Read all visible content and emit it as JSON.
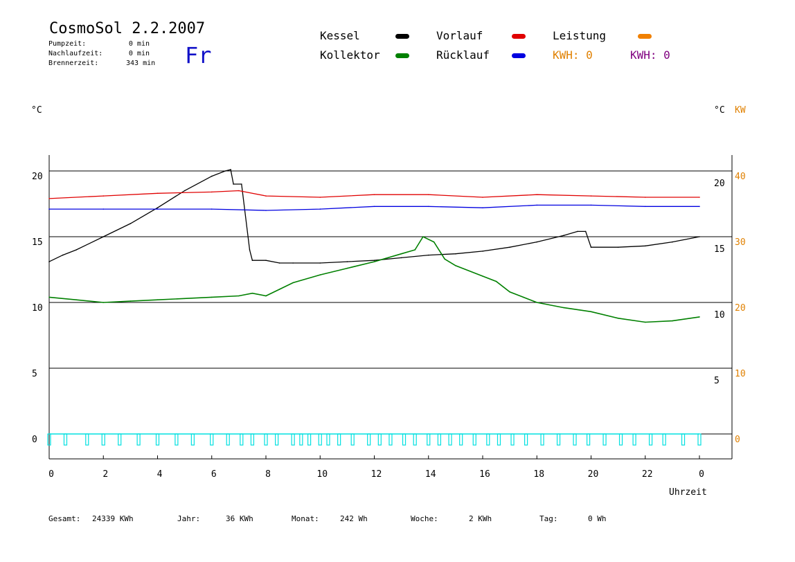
{
  "header": {
    "title": "CosmoSol 2.2.2007",
    "weekday": "Fr",
    "info": [
      {
        "label": "Pumpzeit:",
        "value": "0 min"
      },
      {
        "label": "Nachlaufzeit:",
        "value": "0 min"
      },
      {
        "label": "Brennerzeit:",
        "value": "343 min"
      }
    ]
  },
  "legend": {
    "kessel": "Kessel",
    "kollektor": "Kollektor",
    "vorlauf": "Vorlauf",
    "ruecklauf": "Rücklauf",
    "leistung": "Leistung",
    "kwh_orange": "KWH: 0",
    "kwh_purple": "KWH: 0"
  },
  "axes": {
    "left_unit": "°C",
    "right_unit_c": "°C",
    "right_unit_kw": "KW",
    "xlabel": "Uhrzeit"
  },
  "footer": {
    "gesamt_label": "Gesamt:",
    "gesamt_value": "24339 KWh",
    "jahr_label": "Jahr:",
    "jahr_value": "36 KWh",
    "monat_label": "Monat:",
    "monat_value": "242 Wh",
    "woche_label": "Woche:",
    "woche_value": "2 KWh",
    "tag_label": "Tag:",
    "tag_value": "0 Wh"
  },
  "colors": {
    "kessel": "#000000",
    "kollektor": "#008000",
    "vorlauf": "#e00000",
    "ruecklauf": "#0000e0",
    "leistung": "#f08000",
    "kwh_purple": "#800080",
    "pump": "#00e0e0",
    "axis_orange": "#e08000"
  },
  "chart_data": {
    "type": "line",
    "xlabel": "Uhrzeit",
    "x_ticks": [
      "0",
      "2",
      "4",
      "6",
      "8",
      "10",
      "12",
      "14",
      "16",
      "18",
      "20",
      "22",
      "0"
    ],
    "xlim": [
      0,
      24
    ],
    "left_axis": {
      "unit": "°C",
      "ylim": [
        -1.5,
        22
      ],
      "ticks": [
        0,
        5,
        10,
        15,
        20
      ]
    },
    "right_axis_c": {
      "unit": "°C",
      "ticks": [
        5,
        10,
        15,
        20
      ]
    },
    "right_axis_kw": {
      "unit": "KW",
      "ticks": [
        0,
        10,
        20,
        30,
        40
      ]
    },
    "grid": "horizontal",
    "series": [
      {
        "name": "Kessel",
        "color": "#000000",
        "x": [
          0,
          0.5,
          1,
          2,
          3,
          4,
          5,
          6,
          6.5,
          6.7,
          6.8,
          7.1,
          7.4,
          7.5,
          8,
          8.5,
          9,
          10,
          11,
          12,
          13,
          14,
          15,
          16,
          17,
          18,
          19,
          19.5,
          19.8,
          20,
          21,
          22,
          23,
          24
        ],
        "y": [
          13.1,
          13.6,
          14.0,
          15.0,
          16.0,
          17.2,
          18.5,
          19.6,
          20.0,
          20.1,
          19.0,
          19.0,
          14.0,
          13.2,
          13.2,
          13.0,
          13.0,
          13.0,
          13.1,
          13.2,
          13.4,
          13.6,
          13.7,
          13.9,
          14.2,
          14.6,
          15.1,
          15.4,
          15.4,
          14.2,
          14.2,
          14.3,
          14.6,
          15.0
        ]
      },
      {
        "name": "Vorlauf",
        "color": "#e00000",
        "x": [
          0,
          2,
          4,
          6,
          7,
          8,
          10,
          12,
          14,
          16,
          18,
          20,
          22,
          24
        ],
        "y": [
          17.9,
          18.1,
          18.3,
          18.4,
          18.5,
          18.1,
          18.0,
          18.2,
          18.2,
          18.0,
          18.2,
          18.1,
          18.0,
          18.0
        ]
      },
      {
        "name": "Rücklauf",
        "color": "#0000e0",
        "x": [
          0,
          2,
          4,
          6,
          8,
          10,
          12,
          14,
          16,
          18,
          20,
          22,
          24
        ],
        "y": [
          17.1,
          17.1,
          17.1,
          17.1,
          17.0,
          17.1,
          17.3,
          17.3,
          17.2,
          17.4,
          17.4,
          17.3,
          17.3
        ]
      },
      {
        "name": "Kollektor",
        "color": "#008000",
        "x": [
          0,
          1,
          2,
          3,
          4,
          5,
          6,
          7,
          7.5,
          8,
          8.5,
          9,
          10,
          11,
          12,
          13,
          13.5,
          13.8,
          14.2,
          14.6,
          15,
          16,
          16.5,
          17,
          17.5,
          18,
          19,
          20,
          21,
          22,
          23,
          24
        ],
        "y": [
          10.4,
          10.2,
          10.0,
          10.1,
          10.2,
          10.3,
          10.4,
          10.5,
          10.7,
          10.5,
          11.0,
          11.5,
          12.1,
          12.6,
          13.1,
          13.7,
          14.0,
          15.0,
          14.6,
          13.3,
          12.8,
          12.0,
          11.6,
          10.8,
          10.4,
          10.0,
          9.6,
          9.3,
          8.8,
          8.5,
          8.6,
          8.9
        ]
      }
    ],
    "pump_segments": [
      0,
      0.6,
      1.4,
      2.0,
      2.6,
      3.3,
      4.0,
      4.7,
      5.3,
      6.0,
      6.6,
      7.1,
      7.5,
      8.0,
      8.4,
      9.0,
      9.3,
      9.6,
      10.0,
      10.3,
      10.7,
      11.2,
      11.8,
      12.2,
      12.6,
      13.1,
      13.5,
      14.0,
      14.4,
      14.8,
      15.2,
      15.7,
      16.2,
      16.6,
      17.1,
      17.6,
      18.2,
      18.8,
      19.4,
      19.9,
      20.5,
      21.1,
      21.6,
      22.2,
      22.7,
      23.4,
      24.0
    ],
    "pump_level": 0
  }
}
